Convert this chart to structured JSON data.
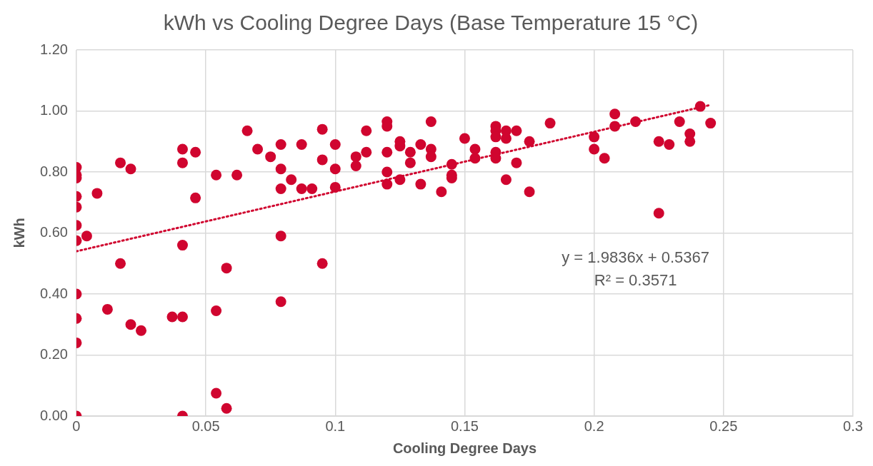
{
  "chart_data": {
    "type": "scatter",
    "title": "kWh vs Cooling Degree Days (Base Temperature 15 °C)",
    "xlabel": "Cooling Degree Days",
    "ylabel": "kWh",
    "xlim": [
      0,
      0.3
    ],
    "xticks": [
      0,
      0.05,
      0.1,
      0.15,
      0.2,
      0.25,
      0.3
    ],
    "ylim": [
      0,
      1.2
    ],
    "yticks": [
      {
        "value": 0,
        "label": "0.00"
      },
      {
        "value": 0.2,
        "label": "0.20"
      },
      {
        "value": 0.4,
        "label": "0.40"
      },
      {
        "value": 0.6,
        "label": "0.60"
      },
      {
        "value": 0.8,
        "label": "0.80"
      },
      {
        "value": 1.0,
        "label": "1.00"
      },
      {
        "value": 1.2,
        "label": "1.20"
      }
    ],
    "grid": true,
    "legend": false,
    "series": [
      {
        "color": "#d0052f",
        "marker": "circle",
        "x": [
          0,
          0,
          0,
          0,
          0,
          0,
          0,
          0,
          0,
          0,
          0,
          0.004,
          0.008,
          0.017,
          0.017,
          0.021,
          0.021,
          0.012,
          0.025,
          0.037,
          0.041,
          0.041,
          0.041,
          0.041,
          0.041,
          0.046,
          0.046,
          0.054,
          0.054,
          0.054,
          0.058,
          0.058,
          0.062,
          0.066,
          0.07,
          0.075,
          0.079,
          0.079,
          0.079,
          0.079,
          0.079,
          0.083,
          0.087,
          0.087,
          0.091,
          0.095,
          0.095,
          0.095,
          0.1,
          0.1,
          0.1,
          0.108,
          0.108,
          0.112,
          0.112,
          0.12,
          0.12,
          0.12,
          0.12,
          0.12,
          0.125,
          0.125,
          0.125,
          0.129,
          0.129,
          0.133,
          0.133,
          0.137,
          0.137,
          0.137,
          0.141,
          0.145,
          0.145,
          0.145,
          0.15,
          0.154,
          0.154,
          0.162,
          0.162,
          0.162,
          0.162,
          0.162,
          0.166,
          0.166,
          0.166,
          0.17,
          0.17,
          0.175,
          0.175,
          0.183,
          0.2,
          0.2,
          0.204,
          0.208,
          0.208,
          0.216,
          0.225,
          0.225,
          0.229,
          0.233,
          0.237,
          0.237,
          0.241,
          0.245
        ],
        "values": [
          0.815,
          0.79,
          0.78,
          0.72,
          0.685,
          0.625,
          0.575,
          0.4,
          0.32,
          0.24,
          0,
          0.59,
          0.73,
          0.83,
          0.5,
          0.81,
          0.3,
          0.35,
          0.28,
          0.325,
          0.875,
          0.83,
          0.56,
          0.325,
          0,
          0.865,
          0.715,
          0.79,
          0.345,
          0.075,
          0.485,
          0.025,
          0.79,
          0.935,
          0.875,
          0.85,
          0.89,
          0.81,
          0.745,
          0.59,
          0.375,
          0.775,
          0.89,
          0.745,
          0.745,
          0.94,
          0.84,
          0.5,
          0.89,
          0.81,
          0.75,
          0.85,
          0.82,
          0.935,
          0.865,
          0.965,
          0.95,
          0.865,
          0.8,
          0.76,
          0.9,
          0.885,
          0.775,
          0.865,
          0.83,
          0.89,
          0.76,
          0.965,
          0.875,
          0.85,
          0.735,
          0.825,
          0.79,
          0.78,
          0.91,
          0.875,
          0.845,
          0.95,
          0.935,
          0.915,
          0.865,
          0.845,
          0.935,
          0.91,
          0.775,
          0.935,
          0.83,
          0.9,
          0.735,
          0.96,
          0.915,
          0.875,
          0.845,
          0.99,
          0.95,
          0.965,
          0.9,
          0.665,
          0.89,
          0.965,
          0.925,
          0.9,
          1.015,
          0.96
        ]
      },
      {
        "type": "line",
        "color": "#d0052f",
        "line_style": "dotted",
        "marker": "none",
        "x": [
          0,
          0.245
        ],
        "values": [
          0.54,
          1.02
        ]
      }
    ],
    "annotations": [
      "y = 1.9836x + 0.5367",
      "R² = 0.3571"
    ]
  }
}
